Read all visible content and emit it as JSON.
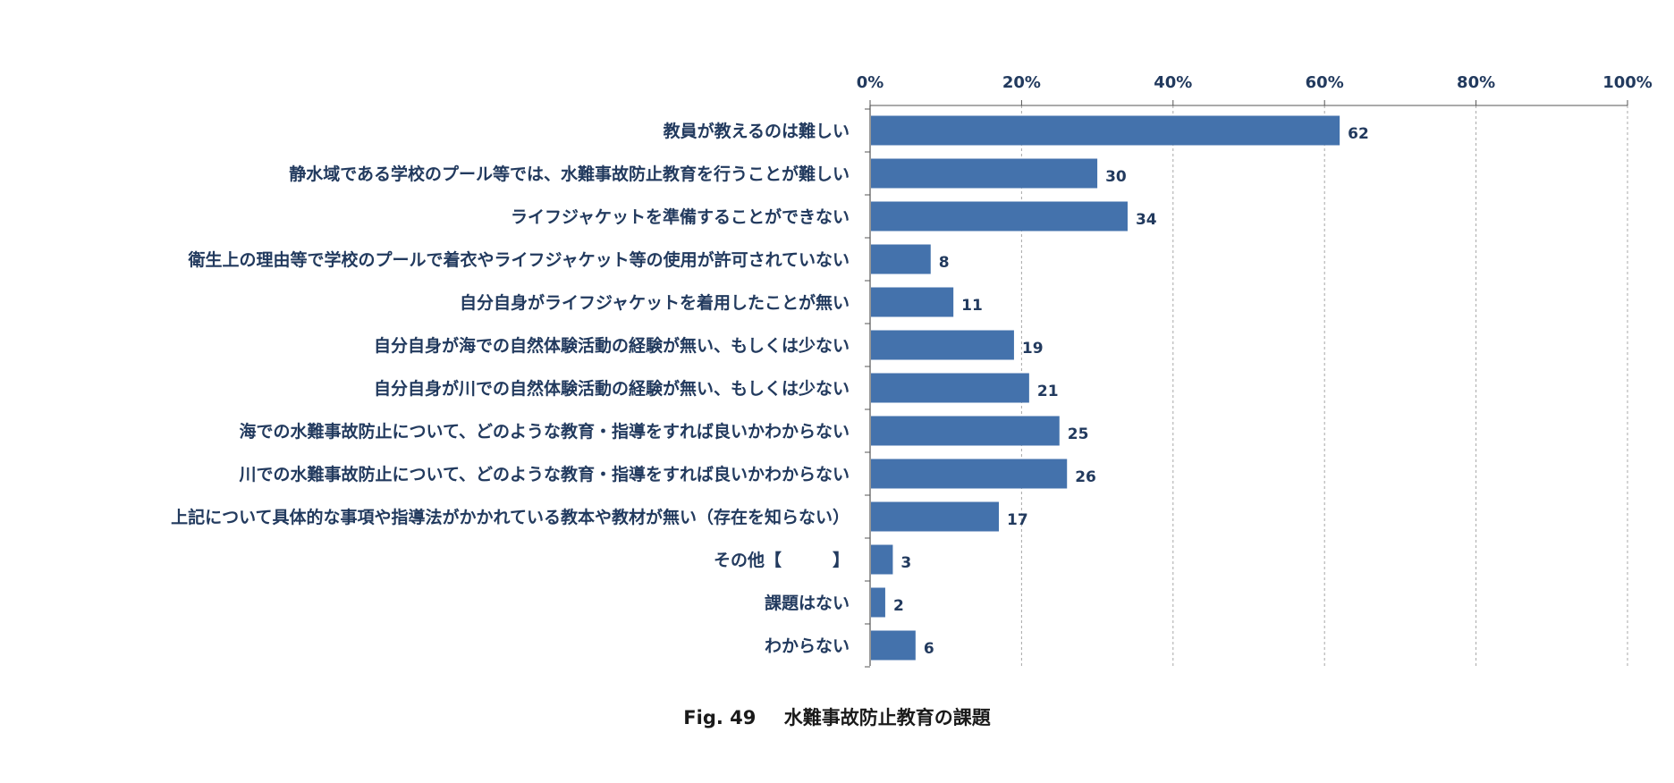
{
  "chart_data": {
    "type": "bar",
    "orientation": "horizontal",
    "title": "",
    "xlabel": "",
    "ylabel": "",
    "xlim": [
      0,
      100
    ],
    "x_ticks": [
      "0%",
      "20%",
      "40%",
      "60%",
      "80%",
      "100%"
    ],
    "x_tick_values": [
      0,
      20,
      40,
      60,
      80,
      100
    ],
    "grid": true,
    "categories": [
      "教員が教えるのは難しい",
      "静水域である学校のプール等では、水難事故防止教育を行うことが難しい",
      "ライフジャケットを準備することができない",
      "衛生上の理由等で学校のプールで着衣やライフジャケット等の使用が許可されていない",
      "自分自身がライフジャケットを着用したことが無い",
      "自分自身が海での自然体験活動の経験が無い、もしくは少ない",
      "自分自身が川での自然体験活動の経験が無い、もしくは少ない",
      "海での水難事故防止について、どのような教育・指導をすれば良いかわからない",
      "川での水難事故防止について、どのような教育・指導をすれば良いかわからない",
      "上記について具体的な事項や指導法がかかれている教本や教材が無い（存在を知らない）",
      "その他【　　　】",
      "課題はない",
      "わからない"
    ],
    "values": [
      62,
      30,
      34,
      8,
      11,
      19,
      21,
      25,
      26,
      17,
      3,
      2,
      6
    ],
    "value_labels": [
      "62",
      "30",
      "34",
      "8",
      "11",
      "19",
      "21",
      "25",
      "26",
      "17",
      "3",
      "2",
      "6"
    ]
  },
  "caption": {
    "fig_number": "Fig. 49",
    "title": "水難事故防止教育の課題"
  },
  "colors": {
    "bar": "#4472ac",
    "text": "#223a5e",
    "grid": "#a8a8a8",
    "axis": "#555555"
  }
}
